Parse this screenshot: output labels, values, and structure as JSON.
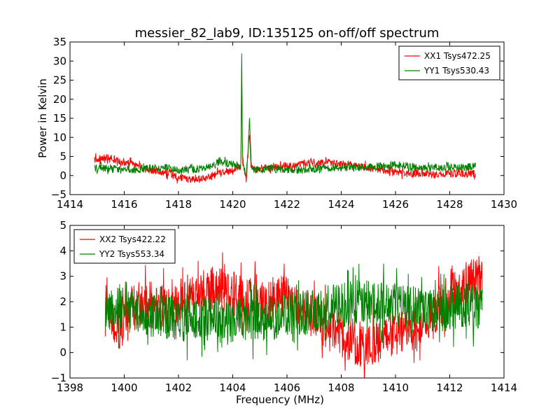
{
  "figure": {
    "title": "messier_82_lab9, ID:135125 on-off/off spectrum"
  },
  "chart_data": [
    {
      "type": "line",
      "title": "messier_82_lab9, ID:135125 on-off/off spectrum",
      "xlabel": "",
      "ylabel": "Power in Kelvin",
      "xlim": [
        1414,
        1430
      ],
      "ylim": [
        -5,
        35
      ],
      "xticks": [
        1414,
        1416,
        1418,
        1420,
        1422,
        1424,
        1426,
        1428,
        1430
      ],
      "yticks": [
        -5,
        0,
        5,
        10,
        15,
        20,
        25,
        30,
        35
      ],
      "xtick_labels": [
        "1414",
        "1416",
        "1418",
        "1420",
        "1422",
        "1424",
        "1426",
        "1428",
        "1430"
      ],
      "ytick_labels": [
        "−5",
        "0",
        "5",
        "10",
        "15",
        "20",
        "25",
        "30",
        "35"
      ],
      "grid": false,
      "legend": "top-right",
      "series": [
        {
          "name": "XX1 Tsys472.25",
          "color": "#ff0000",
          "x": [
            1414.9,
            1415.5,
            1416.0,
            1416.5,
            1417.0,
            1417.5,
            1418.0,
            1418.5,
            1419.0,
            1419.5,
            1420.0,
            1420.3,
            1420.33,
            1420.36,
            1420.42,
            1420.5,
            1420.58,
            1420.62,
            1420.68,
            1420.8,
            1421.0,
            1421.5,
            1422.0,
            1422.5,
            1423.0,
            1423.5,
            1424.0,
            1424.5,
            1425.0,
            1425.5,
            1426.0,
            1426.5,
            1427.0,
            1427.5,
            1428.0,
            1428.5,
            1428.95
          ],
          "y": [
            4.5,
            4.5,
            3.5,
            2.5,
            1.5,
            0.8,
            -0.5,
            -1.2,
            -0.8,
            0.5,
            1.2,
            2.5,
            26.5,
            4.0,
            1.0,
            -1.0,
            8.0,
            10.5,
            2.0,
            1.5,
            1.8,
            2.0,
            2.5,
            3.0,
            3.5,
            3.5,
            3.0,
            2.5,
            2.0,
            1.5,
            1.0,
            0.5,
            0.5,
            0.3,
            0.5,
            0.5,
            0.5
          ]
        },
        {
          "name": "YY1 Tsys530.43",
          "color": "#008000",
          "x": [
            1414.9,
            1415.5,
            1416.0,
            1416.5,
            1417.0,
            1417.5,
            1418.0,
            1418.5,
            1419.0,
            1419.5,
            1420.0,
            1420.3,
            1420.33,
            1420.36,
            1420.42,
            1420.5,
            1420.58,
            1420.62,
            1420.68,
            1420.8,
            1421.0,
            1421.5,
            1422.0,
            1422.5,
            1423.0,
            1423.5,
            1424.0,
            1424.5,
            1425.0,
            1425.5,
            1426.0,
            1426.5,
            1427.0,
            1427.5,
            1428.0,
            1428.5,
            1428.95
          ],
          "y": [
            2.0,
            1.8,
            1.5,
            1.5,
            2.0,
            2.0,
            1.5,
            1.5,
            2.0,
            3.5,
            3.0,
            2.5,
            32.0,
            5.0,
            1.5,
            0.5,
            9.0,
            15.0,
            2.5,
            1.5,
            1.5,
            1.8,
            1.5,
            1.5,
            1.8,
            2.0,
            2.0,
            2.0,
            2.2,
            2.5,
            2.8,
            2.5,
            2.0,
            2.0,
            2.0,
            2.0,
            2.5
          ]
        }
      ]
    },
    {
      "type": "line",
      "title": "",
      "xlabel": "Frequency (MHz)",
      "ylabel": "",
      "xlim": [
        1398,
        1414
      ],
      "ylim": [
        -1,
        5
      ],
      "xticks": [
        1398,
        1400,
        1402,
        1404,
        1406,
        1408,
        1410,
        1412,
        1414
      ],
      "yticks": [
        -1,
        0,
        1,
        2,
        3,
        4,
        5
      ],
      "xtick_labels": [
        "1398",
        "1400",
        "1402",
        "1404",
        "1406",
        "1408",
        "1410",
        "1412",
        "1414"
      ],
      "ytick_labels": [
        "−1",
        "0",
        "1",
        "2",
        "3",
        "4",
        "5"
      ],
      "grid": false,
      "legend": "top-left",
      "series": [
        {
          "name": "XX2 Tsys422.22",
          "color": "#ff0000",
          "x": [
            1399.3,
            1399.8,
            1400.3,
            1400.8,
            1401.3,
            1401.8,
            1402.3,
            1402.8,
            1403.3,
            1403.8,
            1404.3,
            1404.8,
            1405.3,
            1405.8,
            1406.3,
            1406.8,
            1407.3,
            1407.8,
            1408.3,
            1408.8,
            1409.3,
            1409.8,
            1410.3,
            1410.8,
            1411.3,
            1411.8,
            1412.3,
            1412.8,
            1413.2
          ],
          "y": [
            1.5,
            1.2,
            1.8,
            2.0,
            1.8,
            2.0,
            2.2,
            2.3,
            2.5,
            2.4,
            2.2,
            2.3,
            2.0,
            2.2,
            2.0,
            1.5,
            1.2,
            0.8,
            0.5,
            0.3,
            0.4,
            0.5,
            0.8,
            1.0,
            1.5,
            2.0,
            2.5,
            2.8,
            3.0
          ]
        },
        {
          "name": "YY2 Tsys553.34",
          "color": "#008000",
          "x": [
            1399.3,
            1399.8,
            1400.3,
            1400.8,
            1401.3,
            1401.8,
            1402.3,
            1402.8,
            1403.3,
            1403.8,
            1404.3,
            1404.8,
            1405.3,
            1405.8,
            1406.3,
            1406.8,
            1407.3,
            1407.8,
            1408.3,
            1408.8,
            1409.3,
            1409.8,
            1410.3,
            1410.8,
            1411.3,
            1411.8,
            1412.3,
            1412.8,
            1413.2
          ],
          "y": [
            1.8,
            1.7,
            1.6,
            1.5,
            1.4,
            1.4,
            1.3,
            1.3,
            1.2,
            1.2,
            1.3,
            1.3,
            1.4,
            1.4,
            1.5,
            1.6,
            1.7,
            1.8,
            1.9,
            2.0,
            2.0,
            1.9,
            1.8,
            1.8,
            1.7,
            1.7,
            1.8,
            1.8,
            1.9
          ]
        }
      ]
    }
  ]
}
